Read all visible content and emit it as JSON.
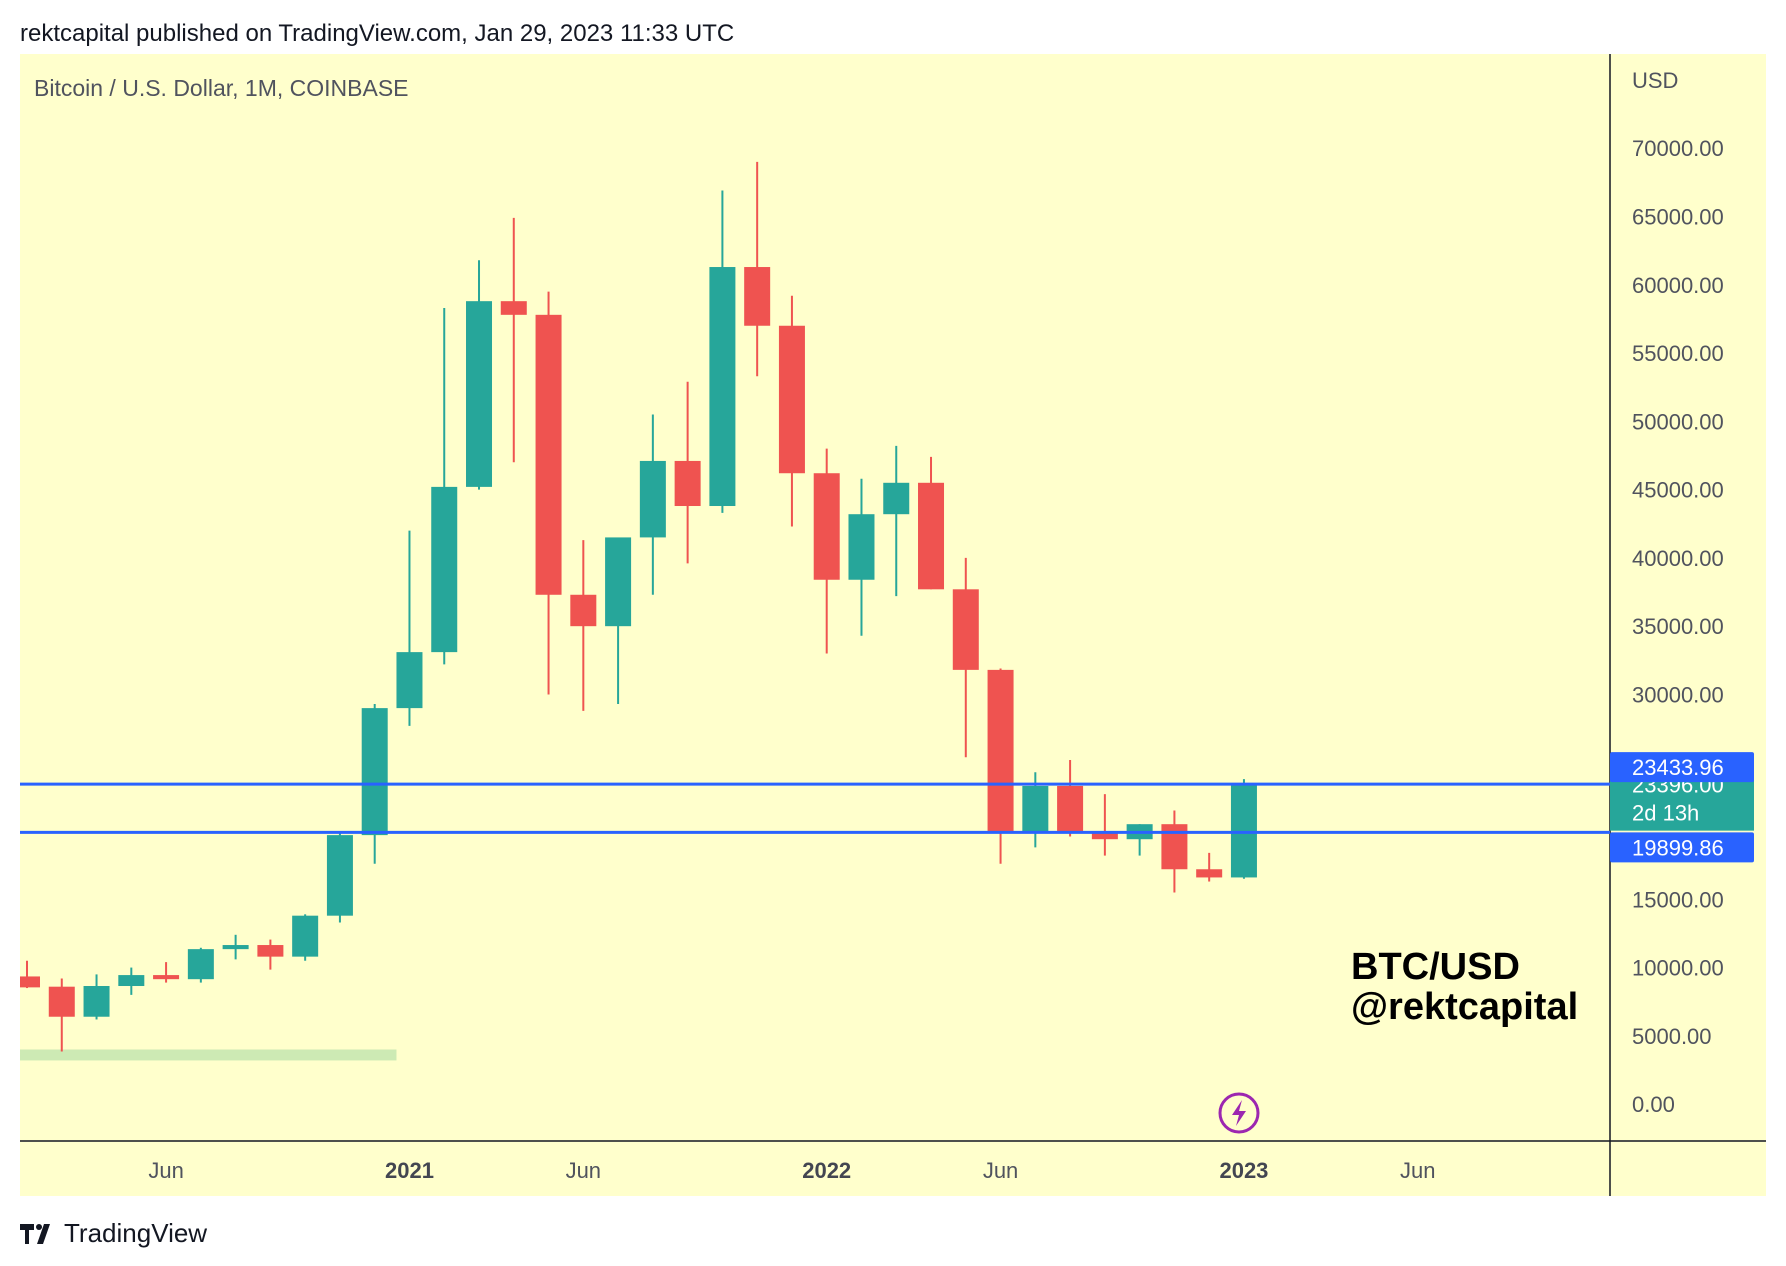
{
  "header": {
    "published": "rektcapital published on TradingView.com, Jan 29, 2023 11:33 UTC"
  },
  "footer": {
    "brand": "TradingView"
  },
  "colors": {
    "background": "#ffffcc",
    "bull": "#26a69a",
    "bear": "#ef5350",
    "level_line": "#2962ff",
    "zone": "#cdeab4",
    "axis_text": "#50535e"
  },
  "chart_data": {
    "type": "candlestick",
    "title": "Bitcoin / U.S. Dollar, 1M, COINBASE",
    "annotation": [
      "BTC/USD",
      "@rektcapital"
    ],
    "currency": "USD",
    "ylim": [
      -2700,
      76900
    ],
    "y_ticks": [
      0,
      5000,
      10000,
      15000,
      30000,
      35000,
      40000,
      45000,
      50000,
      55000,
      60000,
      65000,
      70000
    ],
    "y_tick_labels": [
      "0.00",
      "5000.00",
      "10000.00",
      "15000.00",
      "30000.00",
      "35000.00",
      "40000.00",
      "45000.00",
      "50000.00",
      "55000.00",
      "60000.00",
      "65000.00",
      "70000.00"
    ],
    "x_labels": [
      {
        "label": "Jun",
        "index": 4,
        "bold": false
      },
      {
        "label": "2021",
        "index": 11,
        "bold": true
      },
      {
        "label": "Jun",
        "index": 16,
        "bold": false
      },
      {
        "label": "2022",
        "index": 23,
        "bold": true
      },
      {
        "label": "Jun",
        "index": 28,
        "bold": false
      },
      {
        "label": "2023",
        "index": 35,
        "bold": true
      },
      {
        "label": "Jun",
        "index": 40,
        "bold": false
      }
    ],
    "candles": [
      {
        "o": 9350,
        "h": 10500,
        "l": 8500,
        "c": 8550
      },
      {
        "o": 8600,
        "h": 9200,
        "l": 3850,
        "c": 6400
      },
      {
        "o": 6400,
        "h": 9500,
        "l": 6200,
        "c": 8650
      },
      {
        "o": 8650,
        "h": 10000,
        "l": 8000,
        "c": 9450
      },
      {
        "o": 9450,
        "h": 10400,
        "l": 8900,
        "c": 9150
      },
      {
        "o": 9150,
        "h": 11450,
        "l": 8900,
        "c": 11350
      },
      {
        "o": 11350,
        "h": 12400,
        "l": 10600,
        "c": 11650
      },
      {
        "o": 11650,
        "h": 12050,
        "l": 9850,
        "c": 10800
      },
      {
        "o": 10800,
        "h": 13900,
        "l": 10500,
        "c": 13800
      },
      {
        "o": 13800,
        "h": 19850,
        "l": 13300,
        "c": 19700
      },
      {
        "o": 19700,
        "h": 29300,
        "l": 17600,
        "c": 29000
      },
      {
        "o": 29000,
        "h": 42000,
        "l": 27700,
        "c": 33100
      },
      {
        "o": 33100,
        "h": 58300,
        "l": 32200,
        "c": 45200
      },
      {
        "o": 45200,
        "h": 61800,
        "l": 45000,
        "c": 58800
      },
      {
        "o": 58800,
        "h": 64900,
        "l": 47000,
        "c": 57800
      },
      {
        "o": 57800,
        "h": 59500,
        "l": 30000,
        "c": 37300
      },
      {
        "o": 37300,
        "h": 41300,
        "l": 28800,
        "c": 35000
      },
      {
        "o": 35000,
        "h": 41300,
        "l": 29300,
        "c": 41500
      },
      {
        "o": 41500,
        "h": 50500,
        "l": 37300,
        "c": 47100
      },
      {
        "o": 47100,
        "h": 52900,
        "l": 39600,
        "c": 43800
      },
      {
        "o": 43800,
        "h": 66900,
        "l": 43300,
        "c": 61300
      },
      {
        "o": 61300,
        "h": 69000,
        "l": 53300,
        "c": 57000
      },
      {
        "o": 57000,
        "h": 59200,
        "l": 42300,
        "c": 46200
      },
      {
        "o": 46200,
        "h": 48000,
        "l": 33000,
        "c": 38400
      },
      {
        "o": 38400,
        "h": 45800,
        "l": 34300,
        "c": 43200
      },
      {
        "o": 43200,
        "h": 48200,
        "l": 37200,
        "c": 45500
      },
      {
        "o": 45500,
        "h": 47400,
        "l": 37700,
        "c": 37700
      },
      {
        "o": 37700,
        "h": 40000,
        "l": 25400,
        "c": 31800
      },
      {
        "o": 31800,
        "h": 31900,
        "l": 17600,
        "c": 19950
      },
      {
        "o": 19950,
        "h": 24300,
        "l": 18800,
        "c": 23300
      },
      {
        "o": 23300,
        "h": 25200,
        "l": 19600,
        "c": 20000
      },
      {
        "o": 20000,
        "h": 22700,
        "l": 18200,
        "c": 19400
      },
      {
        "o": 19400,
        "h": 20500,
        "l": 18200,
        "c": 20500
      },
      {
        "o": 20500,
        "h": 21500,
        "l": 15500,
        "c": 17200
      },
      {
        "o": 17200,
        "h": 18400,
        "l": 16300,
        "c": 16600
      },
      {
        "o": 16600,
        "h": 23800,
        "l": 16500,
        "c": 23500
      }
    ],
    "levels": [
      23433.96,
      19899.86
    ],
    "price_tags": [
      {
        "text": "23433.96",
        "value": 23433.96,
        "kind": "level"
      },
      {
        "text": "23396.00",
        "value": 23396.0,
        "kind": "last",
        "sub": "2d 13h"
      },
      {
        "text": "19899.86",
        "value": 19899.86,
        "kind": "level"
      }
    ],
    "zone": {
      "from_index": 0,
      "to_index": 11,
      "low": 3200,
      "high": 4000
    }
  }
}
